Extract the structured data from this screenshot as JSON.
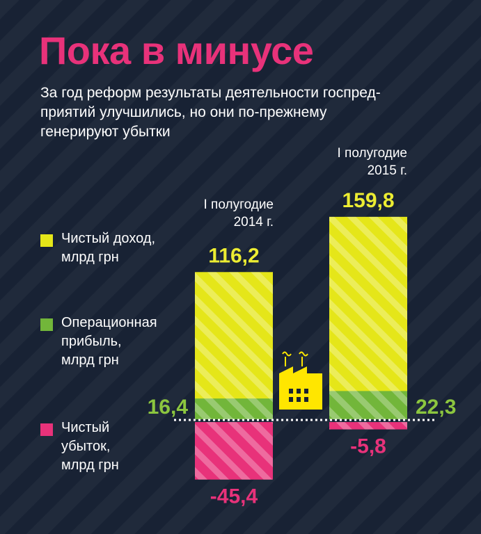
{
  "title": "Пока в минусе",
  "subtitle_lines": [
    "За год реформ результаты деятельности госпред-",
    "приятий улучшились, но они по-прежнему",
    "генерируют убытки"
  ],
  "legend": [
    {
      "lines": [
        "Чистый доход,",
        "млрд грн"
      ],
      "color": "#e5e619"
    },
    {
      "lines": [
        "Операционная",
        "прибыль,",
        "млрд грн"
      ],
      "color": "#72b63a"
    },
    {
      "lines": [
        "Чистый",
        "убыток,",
        "млрд грн"
      ],
      "color": "#e8327a"
    }
  ],
  "colors": {
    "income": "#e5e619",
    "income_label": "#ecec32",
    "profit": "#72b63a",
    "profit_label": "#8cc63f",
    "loss": "#e8327a",
    "factory": "#ffe600"
  },
  "icons": {
    "factory": "factory-icon"
  },
  "chart_data": {
    "type": "bar",
    "categories": [
      "I полугодие 2014 г.",
      "I полугодие 2015 г."
    ],
    "category_lines": [
      [
        "I полугодие",
        "2014 г."
      ],
      [
        "I полугодие",
        "2015 г."
      ]
    ],
    "series": [
      {
        "name": "Чистый доход, млрд грн",
        "values": [
          116.2,
          159.8
        ],
        "labels": [
          "116,2",
          "159,8"
        ]
      },
      {
        "name": "Операционная прибыль, млрд грн",
        "values": [
          16.4,
          22.3
        ],
        "labels": [
          "16,4",
          "22,3"
        ]
      },
      {
        "name": "Чистый убыток, млрд грн",
        "values": [
          -45.4,
          -5.8
        ],
        "labels": [
          "-45,4",
          "-5,8"
        ]
      }
    ],
    "legend_position": "left",
    "grid": false
  }
}
